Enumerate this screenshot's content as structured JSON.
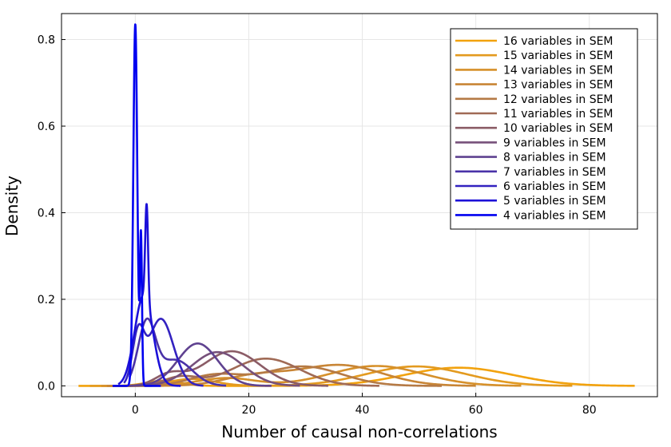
{
  "chart_data": {
    "type": "line",
    "title": "",
    "xlabel": "Number of causal non-correlations",
    "ylabel": "Density",
    "xlim": [
      -13,
      92
    ],
    "ylim": [
      -0.025,
      0.86
    ],
    "x_ticks": [
      0,
      20,
      40,
      60,
      80
    ],
    "y_ticks": [
      0.0,
      0.2,
      0.4,
      0.6,
      0.8
    ],
    "x_tick_labels": [
      "0",
      "20",
      "40",
      "60",
      "80"
    ],
    "y_tick_labels": [
      "0.0",
      "0.2",
      "0.4",
      "0.6",
      "0.8"
    ],
    "grid": true,
    "legend_position": "top-right",
    "series": [
      {
        "name": "16 variables in SEM",
        "color": "#f2a20d",
        "mean": 57,
        "sd": 9.5,
        "peak": 0.042,
        "x_range": [
          -10,
          88
        ]
      },
      {
        "name": "15 variables in SEM",
        "color": "#e39a1f",
        "mean": 49.5,
        "sd": 8.8,
        "peak": 0.045,
        "x_range": [
          -8,
          77
        ]
      },
      {
        "name": "14 variables in SEM",
        "color": "#d6902a",
        "mean": 42.5,
        "sd": 8.2,
        "peak": 0.046,
        "x_range": [
          -6,
          68
        ]
      },
      {
        "name": "13 variables in SEM",
        "color": "#c88535",
        "mean": 36,
        "sd": 7.5,
        "peak": 0.048,
        "x_range": [
          -5,
          60
        ]
      },
      {
        "name": "12 variables in SEM",
        "color": "#b57a45",
        "mean": 29.5,
        "sd": 6.8,
        "peak": 0.045,
        "x_range": [
          -4,
          54
        ]
      },
      {
        "name": "11 variables in SEM",
        "color": "#a06a55",
        "mean": 23,
        "sd": 6.0,
        "peak": 0.063,
        "x_range": [
          -3,
          43
        ]
      },
      {
        "name": "10 variables in SEM",
        "color": "#8b5c66",
        "mean": 17,
        "sd": 5.0,
        "peak": 0.08,
        "x_range": [
          -2,
          34
        ]
      },
      {
        "name": "9 variables in SEM",
        "color": "#76507a",
        "mean": 14.5,
        "sd": 4.5,
        "peak": 0.078,
        "x_range": [
          -1,
          29
        ]
      },
      {
        "name": "8 variables in SEM",
        "color": "#5f4290",
        "mean": 11,
        "sd": 3.5,
        "peak": 0.098,
        "x_range": [
          -1,
          24
        ]
      },
      {
        "name": "7 variables in SEM",
        "color": "#4a32a8",
        "mean": 7,
        "sd": 3.0,
        "peak": 0.06,
        "x_range": [
          -1,
          16
        ]
      },
      {
        "name": "6 variables in SEM",
        "color": "#3322c0",
        "mean": 4.5,
        "sd": 2.2,
        "peak": 0.155,
        "x_range": [
          -2,
          12
        ]
      },
      {
        "name": "5 variables in SEM",
        "color": "#1c10d8",
        "mean": 1.5,
        "sd": 1.6,
        "peak": 0.21,
        "x_range": [
          -3,
          8
        ]
      },
      {
        "name": "4 variables in SEM",
        "color": "#0000f0",
        "mean": 0,
        "sd": 0.35,
        "peak": 0.835,
        "x_range": [
          -4,
          4.5
        ]
      }
    ],
    "extra_components": [
      {
        "series": "16 variables in SEM",
        "mean": 5,
        "sd": 3,
        "peak": 0.012
      },
      {
        "series": "15 variables in SEM",
        "mean": 10,
        "sd": 4,
        "peak": 0.016
      },
      {
        "series": "14 variables in SEM",
        "mean": 16,
        "sd": 5,
        "peak": 0.018
      },
      {
        "series": "13 variables in SEM",
        "mean": 21,
        "sd": 5.5,
        "peak": 0.022
      },
      {
        "series": "12 variables in SEM",
        "mean": 14,
        "sd": 4.5,
        "peak": 0.024
      },
      {
        "series": "11 variables in SEM",
        "mean": 8,
        "sd": 3,
        "peak": 0.02
      },
      {
        "series": "10 variables in SEM",
        "mean": 6,
        "sd": 2.5,
        "peak": 0.025
      },
      {
        "series": "7 variables in SEM",
        "mean": 2,
        "sd": 1.5,
        "peak": 0.14
      },
      {
        "series": "6 variables in SEM",
        "mean": 0.5,
        "sd": 1.0,
        "peak": 0.11
      },
      {
        "series": "5 variables in SEM",
        "mean": 2.0,
        "sd": 0.25,
        "peak": 0.22
      },
      {
        "series": "4 variables in SEM",
        "mean": 1.0,
        "sd": 0.18,
        "peak": 0.345
      }
    ]
  }
}
